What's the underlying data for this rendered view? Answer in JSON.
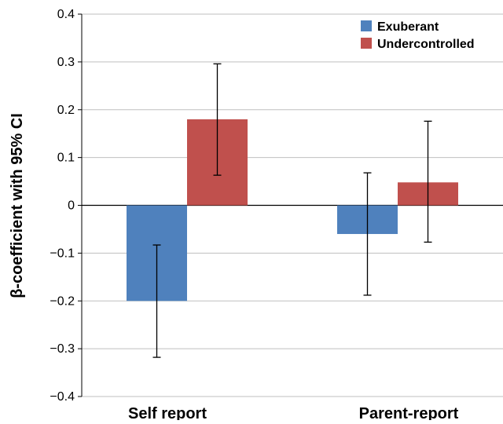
{
  "chart_data": {
    "type": "bar",
    "ylabel": "β-coefficient with 95% CI",
    "ylim": [
      -0.4,
      0.4
    ],
    "yticks": [
      0.4,
      0.3,
      0.2,
      0.1,
      0,
      -0.1,
      -0.2,
      -0.3,
      -0.4
    ],
    "ytick_labels": [
      "0.4",
      "0.3",
      "0.2",
      "0.1",
      "0",
      "−0.1",
      "−0.2",
      "−0.3",
      "−0.4"
    ],
    "categories": [
      "Self report",
      "Parent-report"
    ],
    "grid": true,
    "legend_position": "top-right",
    "series": [
      {
        "name": "Exuberant",
        "color": "#4f81bd",
        "values": [
          -0.2,
          -0.06
        ],
        "ci_low": [
          -0.318,
          -0.188
        ],
        "ci_high": [
          -0.083,
          0.068
        ]
      },
      {
        "name": "Undercontrolled",
        "color": "#c0504d",
        "values": [
          0.18,
          0.048
        ],
        "ci_low": [
          0.063,
          -0.077
        ],
        "ci_high": [
          0.296,
          0.176
        ]
      }
    ]
  }
}
